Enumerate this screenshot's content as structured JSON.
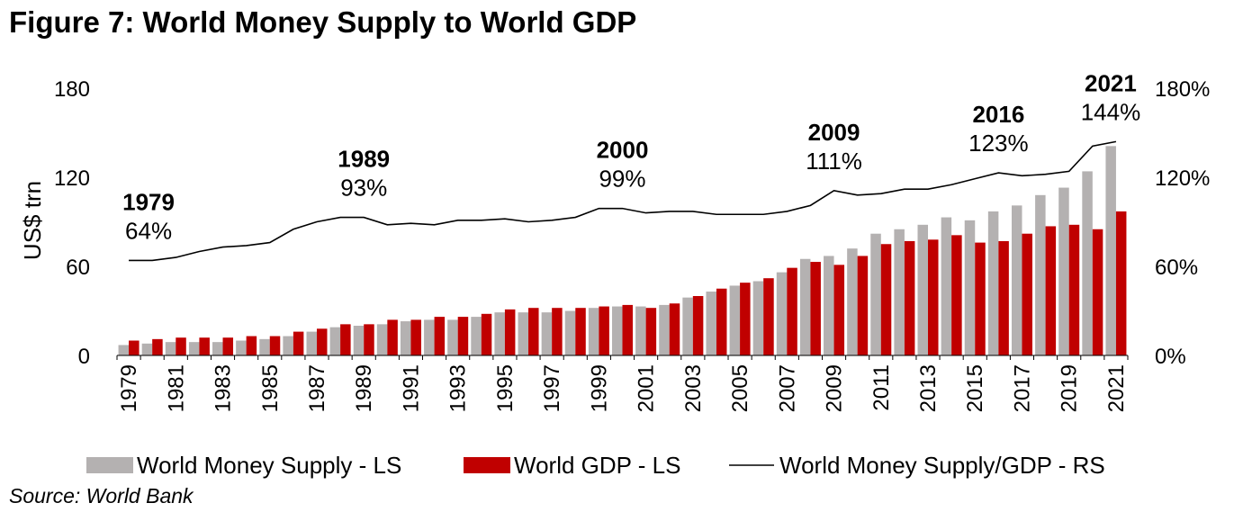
{
  "title": "Figure 7: World Money Supply to World GDP",
  "source": "Source: World Bank",
  "colors": {
    "money_supply": "#b4b1b1",
    "gdp": "#c00000",
    "ratio_line": "#000000"
  },
  "chart_data": {
    "type": "bar",
    "categories": [
      "1979",
      "1980",
      "1981",
      "1982",
      "1983",
      "1984",
      "1985",
      "1986",
      "1987",
      "1988",
      "1989",
      "1990",
      "1991",
      "1992",
      "1993",
      "1994",
      "1995",
      "1996",
      "1997",
      "1998",
      "1999",
      "2000",
      "2001",
      "2002",
      "2003",
      "2004",
      "2005",
      "2006",
      "2007",
      "2008",
      "2009",
      "2010",
      "2011",
      "2012",
      "2013",
      "2014",
      "2015",
      "2016",
      "2017",
      "2018",
      "2019",
      "2020",
      "2021"
    ],
    "x_tick_labels": [
      "1979",
      "1981",
      "1983",
      "1985",
      "1987",
      "1989",
      "1991",
      "1993",
      "1995",
      "1997",
      "1999",
      "2001",
      "2003",
      "2005",
      "2007",
      "2009",
      "2011",
      "2013",
      "2015",
      "2017",
      "2019",
      "2021"
    ],
    "series": [
      {
        "name": "World Money Supply - LS",
        "type": "bar",
        "axis": "left",
        "values": [
          7,
          8,
          9,
          9,
          9,
          10,
          11,
          13,
          16,
          19,
          20,
          21,
          23,
          24,
          24,
          26,
          29,
          29,
          29,
          30,
          32,
          33,
          33,
          34,
          39,
          43,
          47,
          50,
          56,
          65,
          67,
          72,
          82,
          85,
          88,
          93,
          91,
          97,
          101,
          108,
          113,
          124,
          141
        ]
      },
      {
        "name": "World GDP - LS",
        "type": "bar",
        "axis": "left",
        "values": [
          10,
          11,
          12,
          12,
          12,
          13,
          13,
          16,
          18,
          21,
          21,
          24,
          24,
          26,
          26,
          28,
          31,
          32,
          32,
          32,
          33,
          34,
          32,
          35,
          40,
          45,
          49,
          52,
          59,
          63,
          61,
          67,
          75,
          77,
          78,
          81,
          76,
          77,
          82,
          87,
          88,
          85,
          97
        ]
      },
      {
        "name": "World Money Supply/GDP - RS",
        "type": "line",
        "axis": "right",
        "values": [
          64,
          64,
          66,
          70,
          73,
          74,
          76,
          85,
          90,
          93,
          93,
          88,
          89,
          88,
          91,
          91,
          92,
          90,
          91,
          93,
          99,
          99,
          96,
          97,
          97,
          95,
          95,
          95,
          97,
          101,
          111,
          108,
          109,
          112,
          112,
          115,
          119,
          123,
          121,
          122,
          124,
          141,
          144
        ]
      }
    ],
    "left_axis": {
      "label": "US$ trn",
      "ticks": [
        "0",
        "60",
        "120",
        "180"
      ],
      "ylim": [
        0,
        180
      ]
    },
    "right_axis": {
      "ticks": [
        "0%",
        "60%",
        "120%",
        "180%"
      ],
      "ylim": [
        0,
        180
      ]
    },
    "annotations": [
      {
        "x": "1979",
        "year": "1979",
        "value": "64%"
      },
      {
        "x": "1989",
        "year": "1989",
        "value": "93%"
      },
      {
        "x": "2000",
        "year": "2000",
        "value": "99%"
      },
      {
        "x": "2009",
        "year": "2009",
        "value": "111%"
      },
      {
        "x": "2016",
        "year": "2016",
        "value": "123%"
      },
      {
        "x": "2021",
        "year": "2021",
        "value": "144%"
      }
    ],
    "legend": "bottom",
    "grid": false
  }
}
